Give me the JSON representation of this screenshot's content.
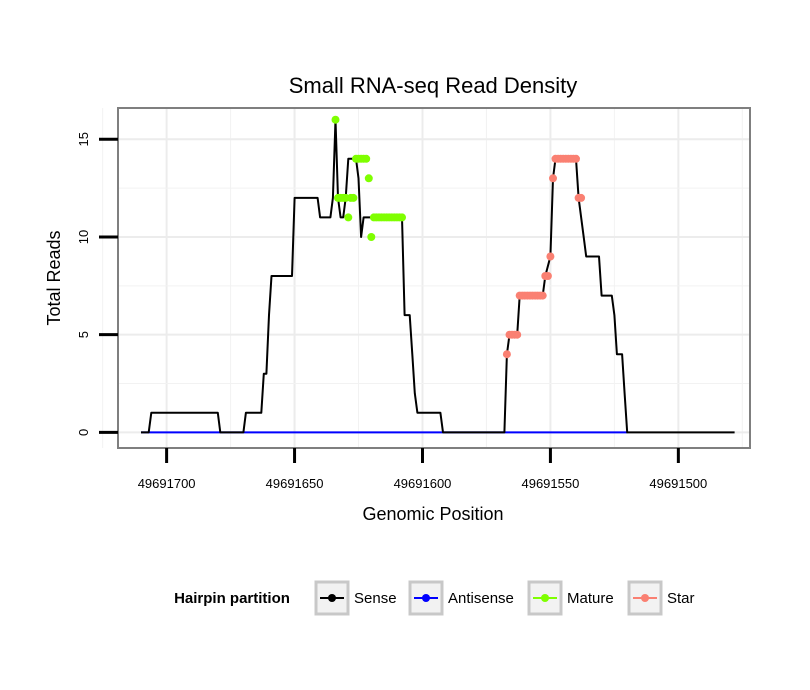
{
  "chart_data": {
    "type": "line",
    "title": "Small RNA-seq Read Density",
    "xlabel": "Genomic Position",
    "ylabel": "Total Reads",
    "xlim": [
      49691719,
      49691472
    ],
    "ylim": [
      -0.8,
      16.6
    ],
    "x_reversed": true,
    "grid": true,
    "x_ticks": [
      49691700,
      49691650,
      49691600,
      49691550,
      49691500
    ],
    "x_tick_labels": [
      "49691700",
      "49691650",
      "49691600",
      "49691550",
      "49691500"
    ],
    "y_ticks": [
      0,
      5,
      10,
      15
    ],
    "y_tick_labels": [
      "0",
      "5",
      "10",
      "15"
    ],
    "legend": {
      "title": "Hairpin partition",
      "position": "bottom",
      "entries": [
        {
          "label": "Sense",
          "color": "#000000"
        },
        {
          "label": "Antisense",
          "color": "#0000ff"
        },
        {
          "label": "Mature",
          "color": "#7fff00"
        },
        {
          "label": "Star",
          "color": "#fa8072"
        }
      ]
    },
    "series": [
      {
        "name": "Sense",
        "color": "#000000",
        "points": [
          [
            49691710,
            0
          ],
          [
            49691707,
            0
          ],
          [
            49691706,
            1
          ],
          [
            49691698,
            1
          ],
          [
            49691690,
            1
          ],
          [
            49691680,
            1
          ],
          [
            49691679,
            0
          ],
          [
            49691670,
            0
          ],
          [
            49691669,
            1
          ],
          [
            49691663,
            1
          ],
          [
            49691662,
            3
          ],
          [
            49691661,
            3
          ],
          [
            49691660,
            6
          ],
          [
            49691659,
            8
          ],
          [
            49691655,
            8
          ],
          [
            49691651,
            8
          ],
          [
            49691650,
            12
          ],
          [
            49691645,
            12
          ],
          [
            49691641,
            12
          ],
          [
            49691640,
            11
          ],
          [
            49691636,
            11
          ],
          [
            49691635,
            12
          ],
          [
            49691634,
            16
          ],
          [
            49691633,
            12
          ],
          [
            49691632,
            11
          ],
          [
            49691631,
            11
          ],
          [
            49691630,
            12
          ],
          [
            49691629,
            14
          ],
          [
            49691626,
            14
          ],
          [
            49691625,
            13
          ],
          [
            49691624,
            10
          ],
          [
            49691623,
            11
          ],
          [
            49691610,
            11
          ],
          [
            49691608,
            11
          ],
          [
            49691607,
            6
          ],
          [
            49691605,
            6
          ],
          [
            49691604,
            4
          ],
          [
            49691603,
            2
          ],
          [
            49691602,
            1
          ],
          [
            49691600,
            1
          ],
          [
            49691593,
            1
          ],
          [
            49691592,
            0
          ],
          [
            49691568,
            0
          ],
          [
            49691567,
            4
          ],
          [
            49691566,
            5
          ],
          [
            49691563,
            5
          ],
          [
            49691562,
            7
          ],
          [
            49691553,
            7
          ],
          [
            49691552,
            8
          ],
          [
            49691550,
            9
          ],
          [
            49691549,
            13
          ],
          [
            49691548,
            14
          ],
          [
            49691545,
            14
          ],
          [
            49691540,
            14
          ],
          [
            49691539,
            12
          ],
          [
            49691537,
            10
          ],
          [
            49691536,
            9
          ],
          [
            49691531,
            9
          ],
          [
            49691530,
            7
          ],
          [
            49691526,
            7
          ],
          [
            49691525,
            6
          ],
          [
            49691524,
            4
          ],
          [
            49691522,
            4
          ],
          [
            49691521,
            2
          ],
          [
            49691520,
            0
          ],
          [
            49691500,
            0
          ],
          [
            49691478,
            0
          ]
        ]
      },
      {
        "name": "Antisense",
        "color": "#0000ff",
        "points": [
          [
            49691710,
            0
          ],
          [
            49691520,
            0
          ]
        ]
      },
      {
        "name": "Mature",
        "color": "#7fff00",
        "points": [
          [
            49691634,
            16
          ],
          [
            49691633,
            12
          ],
          [
            49691632,
            12
          ],
          [
            49691631,
            12
          ],
          [
            49691630,
            12
          ],
          [
            49691629,
            11
          ],
          [
            49691628,
            12
          ],
          [
            49691627,
            12
          ],
          [
            49691626,
            14
          ],
          [
            49691625,
            14
          ],
          [
            49691624,
            14
          ],
          [
            49691623,
            14
          ],
          [
            49691622,
            14
          ],
          [
            49691621,
            13
          ],
          [
            49691620,
            10
          ],
          [
            49691619,
            11
          ],
          [
            49691618,
            11
          ],
          [
            49691617,
            11
          ],
          [
            49691616,
            11
          ],
          [
            49691615,
            11
          ],
          [
            49691614,
            11
          ],
          [
            49691613,
            11
          ],
          [
            49691612,
            11
          ],
          [
            49691611,
            11
          ],
          [
            49691610,
            11
          ],
          [
            49691609,
            11
          ],
          [
            49691608,
            11
          ]
        ]
      },
      {
        "name": "Star",
        "color": "#fa8072",
        "points": [
          [
            49691567,
            4
          ],
          [
            49691566,
            5
          ],
          [
            49691565,
            5
          ],
          [
            49691564,
            5
          ],
          [
            49691563,
            5
          ],
          [
            49691562,
            7
          ],
          [
            49691561,
            7
          ],
          [
            49691560,
            7
          ],
          [
            49691559,
            7
          ],
          [
            49691558,
            7
          ],
          [
            49691557,
            7
          ],
          [
            49691556,
            7
          ],
          [
            49691555,
            7
          ],
          [
            49691554,
            7
          ],
          [
            49691553,
            7
          ],
          [
            49691552,
            8
          ],
          [
            49691551,
            8
          ],
          [
            49691550,
            9
          ],
          [
            49691549,
            13
          ],
          [
            49691548,
            14
          ],
          [
            49691547,
            14
          ],
          [
            49691546,
            14
          ],
          [
            49691545,
            14
          ],
          [
            49691544,
            14
          ],
          [
            49691543,
            14
          ],
          [
            49691542,
            14
          ],
          [
            49691541,
            14
          ],
          [
            49691540,
            14
          ],
          [
            49691539,
            12
          ],
          [
            49691538,
            12
          ]
        ]
      }
    ]
  }
}
